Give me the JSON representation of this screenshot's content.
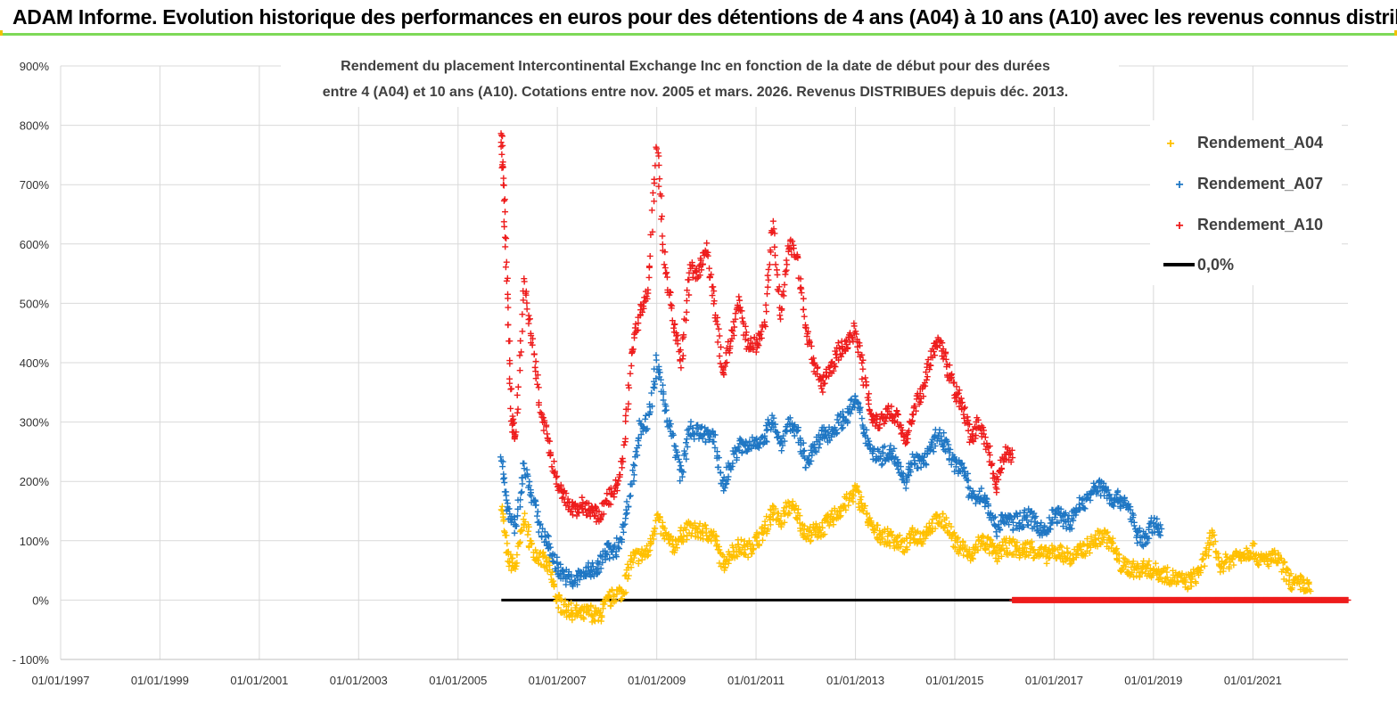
{
  "header": {
    "title": "ADAM Informe. Evolution historique des performances en euros pour des détentions de 4 ans (A04) à 10 ans (A10) avec les revenus connus distribués"
  },
  "colors": {
    "banner_border": "#7ed957",
    "A04": "#ffc000",
    "A07": "#1f77c4",
    "A10": "#ee1c1c",
    "zero_line": "#000000"
  },
  "chart_data": {
    "type": "scatter",
    "title_lines": [
      "Rendement du placement Intercontinental Exchange Inc en fonction de la date de début pour des durées",
      "entre 4 (A04) et 10 ans (A10). Cotations entre nov. 2005 et mars. 2026. Revenus DISTRIBUES depuis déc. 2013."
    ],
    "x_axis": {
      "type": "date",
      "min": "1997-01-01",
      "max": "2022-12-01",
      "tick_labels": [
        "01/01/1997",
        "01/01/1999",
        "01/01/2001",
        "01/01/2003",
        "01/01/2005",
        "01/01/2007",
        "01/01/2009",
        "01/01/2011",
        "01/01/2013",
        "01/01/2015",
        "01/01/2017",
        "01/01/2019",
        "01/01/2021"
      ]
    },
    "y_axis": {
      "min": -100,
      "max": 900,
      "unit": "%",
      "tick_labels": [
        "- 100%",
        "0%",
        "100%",
        "200%",
        "300%",
        "400%",
        "500%",
        "600%",
        "700%",
        "800%",
        "900%"
      ],
      "gridlines": true
    },
    "legend_position": "top-right",
    "series": [
      {
        "name": "Rendement_A04",
        "marker": "+",
        "points": [
          [
            "2005-11-15",
            165
          ],
          [
            "2006-01-01",
            70
          ],
          [
            "2006-03-01",
            55
          ],
          [
            "2006-05-01",
            140
          ],
          [
            "2006-07-01",
            85
          ],
          [
            "2006-09-01",
            70
          ],
          [
            "2006-11-01",
            55
          ],
          [
            "2007-01-01",
            0
          ],
          [
            "2007-03-01",
            -15
          ],
          [
            "2007-05-01",
            -20
          ],
          [
            "2007-07-01",
            -25
          ],
          [
            "2007-09-01",
            -20
          ],
          [
            "2007-11-01",
            -30
          ],
          [
            "2008-01-01",
            -5
          ],
          [
            "2008-03-01",
            10
          ],
          [
            "2008-05-01",
            15
          ],
          [
            "2008-07-01",
            70
          ],
          [
            "2008-09-01",
            75
          ],
          [
            "2008-11-01",
            80
          ],
          [
            "2009-01-01",
            140
          ],
          [
            "2009-03-01",
            110
          ],
          [
            "2009-05-01",
            90
          ],
          [
            "2009-07-01",
            110
          ],
          [
            "2009-09-01",
            120
          ],
          [
            "2009-11-01",
            115
          ],
          [
            "2010-01-01",
            115
          ],
          [
            "2010-03-01",
            105
          ],
          [
            "2010-05-01",
            60
          ],
          [
            "2010-07-01",
            80
          ],
          [
            "2010-09-01",
            90
          ],
          [
            "2010-11-01",
            85
          ],
          [
            "2011-01-01",
            100
          ],
          [
            "2011-03-01",
            115
          ],
          [
            "2011-05-01",
            150
          ],
          [
            "2011-07-01",
            130
          ],
          [
            "2011-09-01",
            160
          ],
          [
            "2011-11-01",
            145
          ],
          [
            "2012-01-01",
            110
          ],
          [
            "2012-03-01",
            115
          ],
          [
            "2012-05-01",
            120
          ],
          [
            "2012-07-01",
            135
          ],
          [
            "2012-09-01",
            150
          ],
          [
            "2012-11-01",
            165
          ],
          [
            "2013-01-01",
            185
          ],
          [
            "2013-03-01",
            155
          ],
          [
            "2013-05-01",
            120
          ],
          [
            "2013-07-01",
            110
          ],
          [
            "2013-09-01",
            105
          ],
          [
            "2013-11-01",
            100
          ],
          [
            "2014-01-01",
            90
          ],
          [
            "2014-03-01",
            110
          ],
          [
            "2014-05-01",
            105
          ],
          [
            "2014-07-01",
            125
          ],
          [
            "2014-09-01",
            135
          ],
          [
            "2014-11-01",
            130
          ],
          [
            "2015-01-01",
            95
          ],
          [
            "2015-03-01",
            90
          ],
          [
            "2015-05-01",
            70
          ],
          [
            "2015-07-01",
            100
          ],
          [
            "2015-09-01",
            95
          ],
          [
            "2015-11-01",
            75
          ],
          [
            "2016-01-01",
            90
          ],
          [
            "2016-03-01",
            90
          ],
          [
            "2016-05-01",
            80
          ],
          [
            "2016-07-01",
            90
          ],
          [
            "2016-09-01",
            80
          ],
          [
            "2016-11-01",
            75
          ],
          [
            "2017-01-01",
            80
          ],
          [
            "2017-03-01",
            80
          ],
          [
            "2017-05-01",
            70
          ],
          [
            "2017-07-01",
            80
          ],
          [
            "2017-09-01",
            90
          ],
          [
            "2017-11-01",
            100
          ],
          [
            "2018-01-01",
            110
          ],
          [
            "2018-03-01",
            95
          ],
          [
            "2018-05-01",
            60
          ],
          [
            "2018-07-01",
            55
          ],
          [
            "2018-09-01",
            50
          ],
          [
            "2018-11-01",
            55
          ],
          [
            "2019-01-01",
            50
          ],
          [
            "2019-03-01",
            45
          ],
          [
            "2019-05-01",
            40
          ],
          [
            "2019-07-01",
            35
          ],
          [
            "2019-09-01",
            30
          ],
          [
            "2019-11-01",
            40
          ],
          [
            "2020-01-01",
            60
          ],
          [
            "2020-03-01",
            110
          ],
          [
            "2020-05-01",
            60
          ],
          [
            "2020-07-01",
            65
          ],
          [
            "2020-09-01",
            75
          ],
          [
            "2020-11-01",
            80
          ],
          [
            "2021-01-01",
            85
          ],
          [
            "2021-03-01",
            65
          ],
          [
            "2021-05-01",
            70
          ],
          [
            "2021-07-01",
            70
          ],
          [
            "2021-09-01",
            45
          ],
          [
            "2021-11-01",
            25
          ],
          [
            "2022-01-01",
            30
          ],
          [
            "2022-03-01",
            15
          ]
        ]
      },
      {
        "name": "Rendement_A07",
        "marker": "+",
        "points": [
          [
            "2005-11-15",
            240
          ],
          [
            "2006-01-01",
            150
          ],
          [
            "2006-03-01",
            120
          ],
          [
            "2006-05-01",
            230
          ],
          [
            "2006-07-01",
            175
          ],
          [
            "2006-09-01",
            120
          ],
          [
            "2006-11-01",
            90
          ],
          [
            "2007-01-01",
            55
          ],
          [
            "2007-03-01",
            40
          ],
          [
            "2007-05-01",
            30
          ],
          [
            "2007-07-01",
            45
          ],
          [
            "2007-09-01",
            50
          ],
          [
            "2007-11-01",
            55
          ],
          [
            "2008-01-01",
            85
          ],
          [
            "2008-03-01",
            80
          ],
          [
            "2008-05-01",
            120
          ],
          [
            "2008-07-01",
            200
          ],
          [
            "2008-09-01",
            290
          ],
          [
            "2008-11-01",
            300
          ],
          [
            "2009-01-01",
            400
          ],
          [
            "2009-03-01",
            330
          ],
          [
            "2009-05-01",
            270
          ],
          [
            "2009-07-01",
            210
          ],
          [
            "2009-09-01",
            290
          ],
          [
            "2009-11-01",
            280
          ],
          [
            "2010-01-01",
            280
          ],
          [
            "2010-03-01",
            270
          ],
          [
            "2010-05-01",
            190
          ],
          [
            "2010-07-01",
            230
          ],
          [
            "2010-09-01",
            260
          ],
          [
            "2010-11-01",
            255
          ],
          [
            "2011-01-01",
            270
          ],
          [
            "2011-03-01",
            265
          ],
          [
            "2011-05-01",
            310
          ],
          [
            "2011-07-01",
            260
          ],
          [
            "2011-09-01",
            300
          ],
          [
            "2011-11-01",
            280
          ],
          [
            "2012-01-01",
            235
          ],
          [
            "2012-03-01",
            250
          ],
          [
            "2012-05-01",
            280
          ],
          [
            "2012-07-01",
            280
          ],
          [
            "2012-09-01",
            300
          ],
          [
            "2012-11-01",
            310
          ],
          [
            "2013-01-01",
            340
          ],
          [
            "2013-03-01",
            290
          ],
          [
            "2013-05-01",
            250
          ],
          [
            "2013-07-01",
            240
          ],
          [
            "2013-09-01",
            250
          ],
          [
            "2013-11-01",
            240
          ],
          [
            "2014-01-01",
            200
          ],
          [
            "2014-03-01",
            240
          ],
          [
            "2014-05-01",
            230
          ],
          [
            "2014-07-01",
            250
          ],
          [
            "2014-09-01",
            280
          ],
          [
            "2014-11-01",
            260
          ],
          [
            "2015-01-01",
            225
          ],
          [
            "2015-03-01",
            230
          ],
          [
            "2015-05-01",
            170
          ],
          [
            "2015-07-01",
            180
          ],
          [
            "2015-09-01",
            160
          ],
          [
            "2015-11-01",
            120
          ],
          [
            "2016-01-01",
            140
          ],
          [
            "2016-03-01",
            130
          ],
          [
            "2016-05-01",
            135
          ],
          [
            "2016-07-01",
            140
          ],
          [
            "2016-09-01",
            125
          ],
          [
            "2016-11-01",
            115
          ],
          [
            "2017-01-01",
            145
          ],
          [
            "2017-03-01",
            140
          ],
          [
            "2017-05-01",
            130
          ],
          [
            "2017-07-01",
            160
          ],
          [
            "2017-09-01",
            170
          ],
          [
            "2017-11-01",
            190
          ],
          [
            "2018-01-01",
            190
          ],
          [
            "2018-03-01",
            170
          ],
          [
            "2018-05-01",
            170
          ],
          [
            "2018-07-01",
            160
          ],
          [
            "2018-09-01",
            110
          ],
          [
            "2018-11-01",
            100
          ],
          [
            "2019-01-01",
            130
          ],
          [
            "2019-03-01",
            120
          ]
        ]
      },
      {
        "name": "Rendement_A10",
        "marker": "+",
        "points": [
          [
            "2005-11-15",
            790
          ],
          [
            "2005-12-01",
            700
          ],
          [
            "2006-01-01",
            500
          ],
          [
            "2006-02-01",
            300
          ],
          [
            "2006-03-01",
            270
          ],
          [
            "2006-05-01",
            540
          ],
          [
            "2006-07-01",
            430
          ],
          [
            "2006-09-01",
            320
          ],
          [
            "2006-11-01",
            260
          ],
          [
            "2007-01-01",
            190
          ],
          [
            "2007-03-01",
            170
          ],
          [
            "2007-05-01",
            150
          ],
          [
            "2007-07-01",
            160
          ],
          [
            "2007-09-01",
            150
          ],
          [
            "2007-11-01",
            140
          ],
          [
            "2008-01-01",
            170
          ],
          [
            "2008-03-01",
            180
          ],
          [
            "2008-05-01",
            240
          ],
          [
            "2008-07-01",
            420
          ],
          [
            "2008-09-01",
            480
          ],
          [
            "2008-11-01",
            520
          ],
          [
            "2009-01-01",
            770
          ],
          [
            "2009-03-01",
            570
          ],
          [
            "2009-05-01",
            470
          ],
          [
            "2009-07-01",
            400
          ],
          [
            "2009-09-01",
            560
          ],
          [
            "2009-11-01",
            550
          ],
          [
            "2010-01-01",
            590
          ],
          [
            "2010-03-01",
            500
          ],
          [
            "2010-05-01",
            380
          ],
          [
            "2010-07-01",
            440
          ],
          [
            "2010-09-01",
            500
          ],
          [
            "2010-11-01",
            430
          ],
          [
            "2011-01-01",
            430
          ],
          [
            "2011-03-01",
            460
          ],
          [
            "2011-05-01",
            640
          ],
          [
            "2011-07-01",
            480
          ],
          [
            "2011-09-01",
            600
          ],
          [
            "2011-11-01",
            580
          ],
          [
            "2012-01-01",
            460
          ],
          [
            "2012-03-01",
            400
          ],
          [
            "2012-05-01",
            360
          ],
          [
            "2012-07-01",
            390
          ],
          [
            "2012-09-01",
            420
          ],
          [
            "2012-11-01",
            430
          ],
          [
            "2013-01-01",
            460
          ],
          [
            "2013-03-01",
            380
          ],
          [
            "2013-05-01",
            310
          ],
          [
            "2013-07-01",
            300
          ],
          [
            "2013-09-01",
            320
          ],
          [
            "2013-11-01",
            310
          ],
          [
            "2014-01-01",
            260
          ],
          [
            "2014-03-01",
            320
          ],
          [
            "2014-05-01",
            350
          ],
          [
            "2014-07-01",
            400
          ],
          [
            "2014-09-01",
            440
          ],
          [
            "2014-11-01",
            400
          ],
          [
            "2015-01-01",
            350
          ],
          [
            "2015-03-01",
            330
          ],
          [
            "2015-05-01",
            270
          ],
          [
            "2015-07-01",
            300
          ],
          [
            "2015-09-01",
            260
          ],
          [
            "2015-11-01",
            190
          ],
          [
            "2016-01-01",
            250
          ],
          [
            "2016-03-01",
            240
          ]
        ]
      },
      {
        "name": "0,0%",
        "marker": "line",
        "points": [
          [
            "2005-11-15",
            0
          ],
          [
            "2016-03-01",
            0
          ]
        ]
      }
    ],
    "zero_markers_A10": {
      "from": "2016-03-01",
      "to": "2022-12-01",
      "value": 0
    }
  }
}
